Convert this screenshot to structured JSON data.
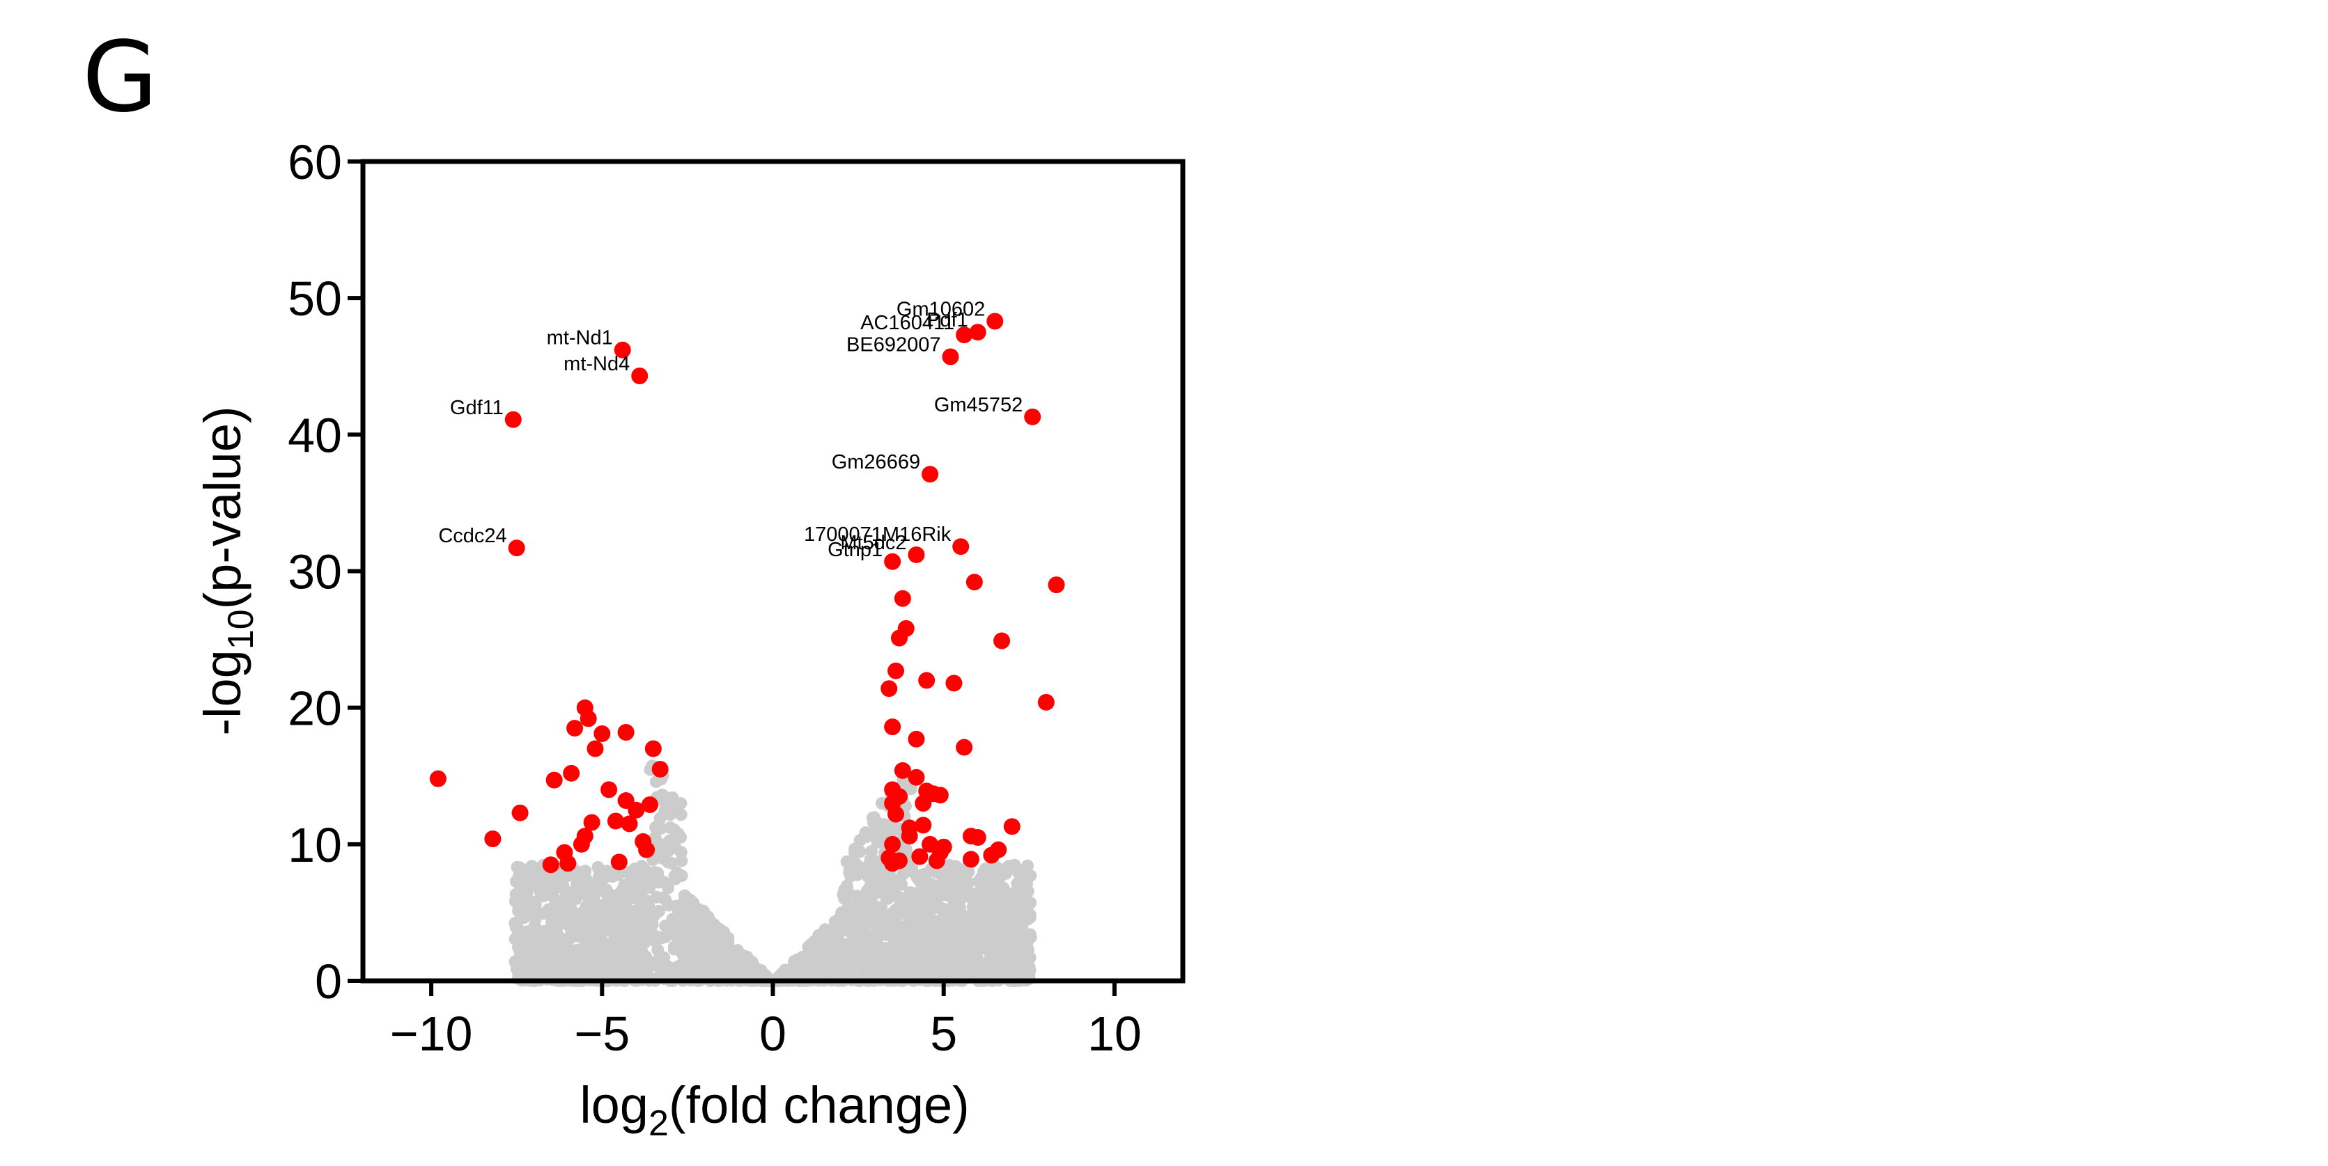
{
  "panel_letter": "G",
  "chart_data": {
    "type": "scatter",
    "title": "",
    "xlabel": "log2(fold change)",
    "ylabel": "-log10(p-value)",
    "xlim": [
      -12,
      12
    ],
    "ylim": [
      0,
      60
    ],
    "xticks": [
      -10,
      -5,
      0,
      5,
      10
    ],
    "yticks": [
      0,
      10,
      20,
      30,
      40,
      50,
      60
    ],
    "grid": false,
    "legend": "none",
    "colors": {
      "significant": "#ff0000",
      "not_significant": "#cccccc",
      "axis": "#000000"
    },
    "series": [
      {
        "color": "#ff0000",
        "points": [
          [
            -9.8,
            14.8
          ],
          [
            -8.2,
            10.4
          ],
          [
            -7.6,
            41.1
          ],
          [
            -7.5,
            31.7
          ],
          [
            -7.4,
            12.3
          ],
          [
            -6.5,
            8.5
          ],
          [
            -6.4,
            14.7
          ],
          [
            -6.1,
            9.4
          ],
          [
            -6.0,
            8.6
          ],
          [
            -5.9,
            15.2
          ],
          [
            -5.8,
            18.5
          ],
          [
            -5.6,
            10.0
          ],
          [
            -5.5,
            20.0
          ],
          [
            -5.4,
            19.2
          ],
          [
            -5.3,
            11.6
          ],
          [
            -5.2,
            17.0
          ],
          [
            -5.0,
            18.1
          ],
          [
            -4.8,
            14.0
          ],
          [
            -4.6,
            11.7
          ],
          [
            -4.5,
            8.7
          ],
          [
            -4.4,
            46.2
          ],
          [
            -4.3,
            18.2
          ],
          [
            -4.3,
            13.2
          ],
          [
            -4.2,
            11.5
          ],
          [
            -4.0,
            12.5
          ],
          [
            -3.9,
            44.3
          ],
          [
            -3.8,
            10.2
          ],
          [
            -3.7,
            9.6
          ],
          [
            -3.6,
            12.9
          ],
          [
            -3.5,
            17.0
          ],
          [
            -3.3,
            15.5
          ],
          [
            -5.5,
            10.6
          ],
          [
            3.4,
            21.4
          ],
          [
            3.4,
            9.0
          ],
          [
            3.5,
            30.7
          ],
          [
            3.5,
            18.6
          ],
          [
            3.5,
            14.0
          ],
          [
            3.5,
            13.0
          ],
          [
            3.5,
            10.0
          ],
          [
            3.5,
            8.6
          ],
          [
            3.6,
            22.7
          ],
          [
            3.6,
            12.2
          ],
          [
            3.7,
            25.1
          ],
          [
            3.7,
            13.5
          ],
          [
            3.7,
            8.8
          ],
          [
            3.8,
            28.0
          ],
          [
            3.8,
            15.4
          ],
          [
            3.9,
            25.8
          ],
          [
            4.0,
            11.2
          ],
          [
            4.0,
            10.6
          ],
          [
            4.2,
            31.2
          ],
          [
            4.2,
            17.7
          ],
          [
            4.2,
            14.9
          ],
          [
            4.3,
            9.1
          ],
          [
            4.4,
            13.0
          ],
          [
            4.4,
            11.4
          ],
          [
            4.5,
            22.0
          ],
          [
            4.5,
            13.9
          ],
          [
            4.6,
            37.1
          ],
          [
            4.6,
            10.0
          ],
          [
            4.7,
            13.7
          ],
          [
            4.8,
            8.8
          ],
          [
            4.9,
            13.6
          ],
          [
            4.9,
            9.4
          ],
          [
            5.0,
            9.8
          ],
          [
            5.2,
            45.7
          ],
          [
            5.3,
            21.8
          ],
          [
            5.5,
            31.8
          ],
          [
            5.6,
            47.3
          ],
          [
            5.6,
            17.1
          ],
          [
            5.8,
            8.9
          ],
          [
            5.8,
            10.6
          ],
          [
            5.9,
            29.2
          ],
          [
            6.0,
            47.5
          ],
          [
            6.0,
            10.5
          ],
          [
            6.4,
            9.2
          ],
          [
            6.5,
            48.3
          ],
          [
            6.6,
            9.6
          ],
          [
            6.7,
            24.9
          ],
          [
            7.0,
            11.3
          ],
          [
            7.6,
            41.3
          ],
          [
            8.0,
            20.4
          ],
          [
            8.3,
            29.0
          ]
        ]
      }
    ],
    "annotations": [
      {
        "text": "mt-Nd1",
        "x": -4.4,
        "y": 46.2
      },
      {
        "text": "mt-Nd4",
        "x": -3.9,
        "y": 44.3
      },
      {
        "text": "Gdf11",
        "x": -7.6,
        "y": 41.1
      },
      {
        "text": "Ccdc24",
        "x": -7.5,
        "y": 31.7
      },
      {
        "text": "Gm10602",
        "x": 6.5,
        "y": 48.3
      },
      {
        "text": "Pdf1",
        "x": 6.0,
        "y": 47.5
      },
      {
        "text": "AC160411",
        "x": 5.6,
        "y": 47.3
      },
      {
        "text": "BE692007",
        "x": 5.2,
        "y": 45.7
      },
      {
        "text": "Gm45752",
        "x": 7.6,
        "y": 41.3
      },
      {
        "text": "Gm26669",
        "x": 4.6,
        "y": 37.1
      },
      {
        "text": "1700071M16Rik",
        "x": 5.5,
        "y": 31.8
      },
      {
        "text": "Mt5dc2",
        "x": 4.2,
        "y": 31.2
      },
      {
        "text": "Gtnp1",
        "x": 3.5,
        "y": 30.7
      }
    ]
  }
}
